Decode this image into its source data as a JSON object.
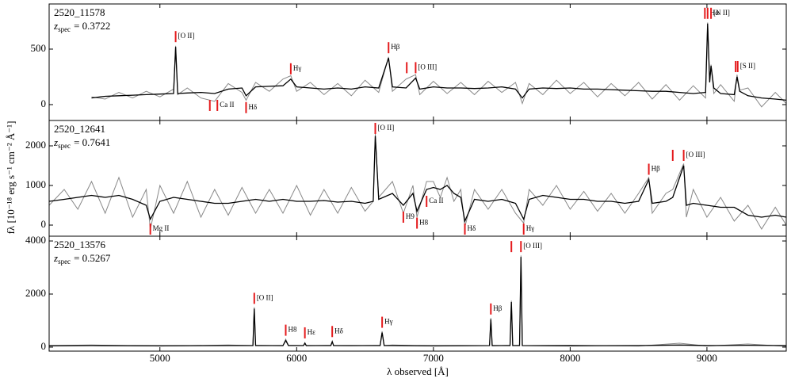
{
  "ylabel": "fλ [10⁻¹⁸ erg s⁻¹ cm⁻² Å⁻¹]",
  "chart_data": [
    {
      "type": "line",
      "object": "2520_11578",
      "z_symbol": "z",
      "z_subscript": "spec",
      "z_text": "= 0.3722",
      "xlim": [
        4190,
        9580
      ],
      "ylim": [
        -143,
        907
      ],
      "xticks": [
        5000,
        6000,
        7000,
        8000,
        9000
      ],
      "yticks": [
        0,
        500
      ],
      "x": [
        4500,
        4600,
        4700,
        4800,
        4900,
        5000,
        5100,
        5115,
        5130,
        5200,
        5300,
        5400,
        5500,
        5600,
        5630,
        5700,
        5800,
        5900,
        5957,
        6000,
        6100,
        6200,
        6300,
        6400,
        6500,
        6600,
        6672,
        6700,
        6800,
        6870,
        6900,
        7000,
        7100,
        7200,
        7300,
        7400,
        7500,
        7600,
        7650,
        7700,
        7800,
        7900,
        8000,
        8100,
        8200,
        8300,
        8400,
        8500,
        8600,
        8700,
        8800,
        8900,
        8990,
        9005,
        9020,
        9030,
        9050,
        9100,
        9200,
        9220,
        9240,
        9300,
        9400,
        9500,
        9580
      ],
      "series": [
        {
          "color": "#888888",
          "values": [
            70,
            50,
            110,
            60,
            120,
            70,
            140,
            530,
            90,
            150,
            60,
            30,
            190,
            110,
            40,
            200,
            120,
            230,
            260,
            120,
            200,
            90,
            190,
            80,
            220,
            110,
            430,
            120,
            230,
            270,
            90,
            210,
            100,
            200,
            90,
            210,
            110,
            200,
            10,
            190,
            90,
            220,
            100,
            200,
            70,
            190,
            80,
            200,
            50,
            180,
            40,
            170,
            60,
            740,
            210,
            360,
            100,
            180,
            30,
            270,
            130,
            150,
            -20,
            110,
            10
          ]
        },
        {
          "color": "#000000",
          "values": [
            60,
            75,
            80,
            85,
            90,
            95,
            100,
            520,
            100,
            105,
            110,
            100,
            140,
            150,
            80,
            160,
            165,
            170,
            230,
            160,
            150,
            140,
            150,
            140,
            160,
            150,
            420,
            160,
            150,
            240,
            140,
            160,
            150,
            150,
            145,
            150,
            160,
            140,
            60,
            140,
            150,
            145,
            150,
            140,
            140,
            135,
            130,
            125,
            120,
            120,
            110,
            100,
            110,
            730,
            200,
            350,
            150,
            100,
            90,
            250,
            120,
            80,
            60,
            50,
            40
          ]
        }
      ],
      "annotation_color": "#e41a1c",
      "annotations": [
        {
          "label": "[O II]",
          "kind": "emission",
          "wavelengths": [
            5115
          ]
        },
        {
          "label": "Ca II",
          "kind": "absorption",
          "wavelengths": [
            5365,
            5420
          ]
        },
        {
          "label": "Hδ",
          "kind": "absorption",
          "wavelengths": [
            5630
          ]
        },
        {
          "label": "Hγ",
          "kind": "emission",
          "wavelengths": [
            5957
          ]
        },
        {
          "label": "Hβ",
          "kind": "emission",
          "wavelengths": [
            6672
          ]
        },
        {
          "label": "[O III]",
          "kind": "emission",
          "wavelengths": [
            6805,
            6870
          ]
        },
        {
          "label": "Hα",
          "kind": "emission",
          "wavelengths": [
            9005
          ]
        },
        {
          "label": "[N II]",
          "kind": "emission",
          "wavelengths": [
            8985,
            9030
          ]
        },
        {
          "label": "[S II]",
          "kind": "emission",
          "wavelengths": [
            9210,
            9225
          ]
        }
      ]
    },
    {
      "type": "line",
      "object": "2520_12641",
      "z_symbol": "z",
      "z_subscript": "spec",
      "z_text": "= 0.7641",
      "xlim": [
        4190,
        9580
      ],
      "ylim": [
        -280,
        2640
      ],
      "xticks": [
        5000,
        6000,
        7000,
        8000,
        9000
      ],
      "yticks": [
        0,
        1000,
        2000
      ],
      "x": [
        4190,
        4300,
        4400,
        4500,
        4600,
        4700,
        4800,
        4900,
        4930,
        5000,
        5100,
        5200,
        5300,
        5400,
        5500,
        5600,
        5700,
        5800,
        5900,
        6000,
        6100,
        6200,
        6300,
        6400,
        6500,
        6560,
        6575,
        6600,
        6700,
        6780,
        6850,
        6880,
        6950,
        7000,
        7050,
        7100,
        7150,
        7200,
        7230,
        7300,
        7400,
        7500,
        7600,
        7660,
        7700,
        7800,
        7900,
        8000,
        8100,
        8200,
        8300,
        8400,
        8500,
        8575,
        8600,
        8700,
        8750,
        8830,
        8850,
        8900,
        9000,
        9100,
        9200,
        9300,
        9400,
        9500,
        9580
      ],
      "series": [
        {
          "color": "#888888",
          "values": [
            500,
            900,
            400,
            1100,
            300,
            1200,
            200,
            900,
            -100,
            1000,
            300,
            1100,
            200,
            900,
            250,
            950,
            300,
            900,
            300,
            1000,
            250,
            900,
            300,
            950,
            350,
            600,
            2300,
            700,
            1100,
            300,
            1000,
            200,
            1100,
            1100,
            700,
            1200,
            600,
            900,
            -50,
            900,
            400,
            900,
            300,
            50,
            900,
            500,
            1000,
            400,
            850,
            350,
            800,
            300,
            800,
            1200,
            300,
            800,
            900,
            1550,
            200,
            900,
            200,
            700,
            100,
            500,
            -100,
            450,
            0
          ]
        },
        {
          "color": "#000000",
          "values": [
            600,
            650,
            700,
            750,
            700,
            750,
            650,
            500,
            150,
            600,
            700,
            650,
            600,
            550,
            550,
            600,
            650,
            600,
            650,
            600,
            600,
            620,
            580,
            600,
            550,
            600,
            2250,
            650,
            800,
            500,
            800,
            350,
            900,
            950,
            900,
            1000,
            800,
            700,
            100,
            650,
            600,
            650,
            550,
            150,
            650,
            750,
            700,
            650,
            650,
            600,
            600,
            550,
            600,
            1150,
            550,
            600,
            700,
            1500,
            500,
            550,
            500,
            450,
            450,
            250,
            200,
            250,
            200
          ]
        }
      ],
      "annotation_color": "#e41a1c",
      "annotations": [
        {
          "label": "Mg II",
          "kind": "absorption",
          "wavelengths": [
            4930
          ]
        },
        {
          "label": "[O II]",
          "kind": "emission",
          "wavelengths": [
            6575
          ]
        },
        {
          "label": "H9",
          "kind": "absorption",
          "wavelengths": [
            6780
          ]
        },
        {
          "label": "H8",
          "kind": "absorption",
          "wavelengths": [
            6880
          ]
        },
        {
          "label": "Ca II",
          "kind": "absorption",
          "wavelengths": [
            6950
          ]
        },
        {
          "label": "Hδ",
          "kind": "absorption",
          "wavelengths": [
            7230
          ]
        },
        {
          "label": "Hγ",
          "kind": "absorption",
          "wavelengths": [
            7660
          ]
        },
        {
          "label": "Hβ",
          "kind": "emission",
          "wavelengths": [
            8575
          ]
        },
        {
          "label": "[O III]",
          "kind": "emission",
          "wavelengths": [
            8750,
            8830
          ]
        }
      ]
    },
    {
      "type": "line",
      "object": "2520_13576",
      "z_symbol": "z",
      "z_subscript": "spec",
      "z_text": "= 0.5267",
      "xlim": [
        4190,
        9580
      ],
      "ylim": [
        -150,
        4180
      ],
      "xticks": [
        5000,
        6000,
        7000,
        8000,
        9000
      ],
      "yticks": [
        0,
        2000,
        4000
      ],
      "xlabel": "λ observed [Å]",
      "x": [
        4190,
        4500,
        5000,
        5500,
        5680,
        5690,
        5700,
        5900,
        5920,
        5940,
        6050,
        6060,
        6070,
        6250,
        6260,
        6270,
        6400,
        6610,
        6625,
        6640,
        6700,
        7000,
        7410,
        7420,
        7430,
        7560,
        7570,
        7580,
        7630,
        7640,
        7650,
        8000,
        8500,
        8800,
        9000,
        9300,
        9580
      ],
      "series": [
        {
          "color": "#888888",
          "values": [
            60,
            80,
            40,
            80,
            60,
            1500,
            70,
            50,
            300,
            70,
            60,
            170,
            50,
            70,
            230,
            60,
            50,
            70,
            600,
            60,
            80,
            40,
            60,
            1100,
            50,
            70,
            1750,
            60,
            70,
            3450,
            60,
            70,
            40,
            150,
            40,
            120,
            30
          ]
        },
        {
          "color": "#000000",
          "values": [
            50,
            60,
            50,
            60,
            60,
            1450,
            60,
            60,
            250,
            60,
            60,
            150,
            60,
            60,
            200,
            60,
            60,
            60,
            550,
            60,
            60,
            50,
            60,
            1050,
            60,
            60,
            1700,
            60,
            60,
            3400,
            60,
            50,
            60,
            80,
            60,
            70,
            60
          ]
        }
      ],
      "annotation_color": "#e41a1c",
      "annotations": [
        {
          "label": "[O II]",
          "kind": "emission",
          "wavelengths": [
            5690
          ]
        },
        {
          "label": "H8",
          "kind": "emission",
          "wavelengths": [
            5920
          ]
        },
        {
          "label": "Hε",
          "kind": "emission",
          "wavelengths": [
            6060
          ]
        },
        {
          "label": "Hδ",
          "kind": "emission",
          "wavelengths": [
            6260
          ]
        },
        {
          "label": "Hγ",
          "kind": "emission",
          "wavelengths": [
            6625
          ]
        },
        {
          "label": "Hβ",
          "kind": "emission",
          "wavelengths": [
            7420
          ]
        },
        {
          "label": "[O III]",
          "kind": "emission",
          "wavelengths": [
            7570,
            7640
          ]
        }
      ]
    }
  ]
}
